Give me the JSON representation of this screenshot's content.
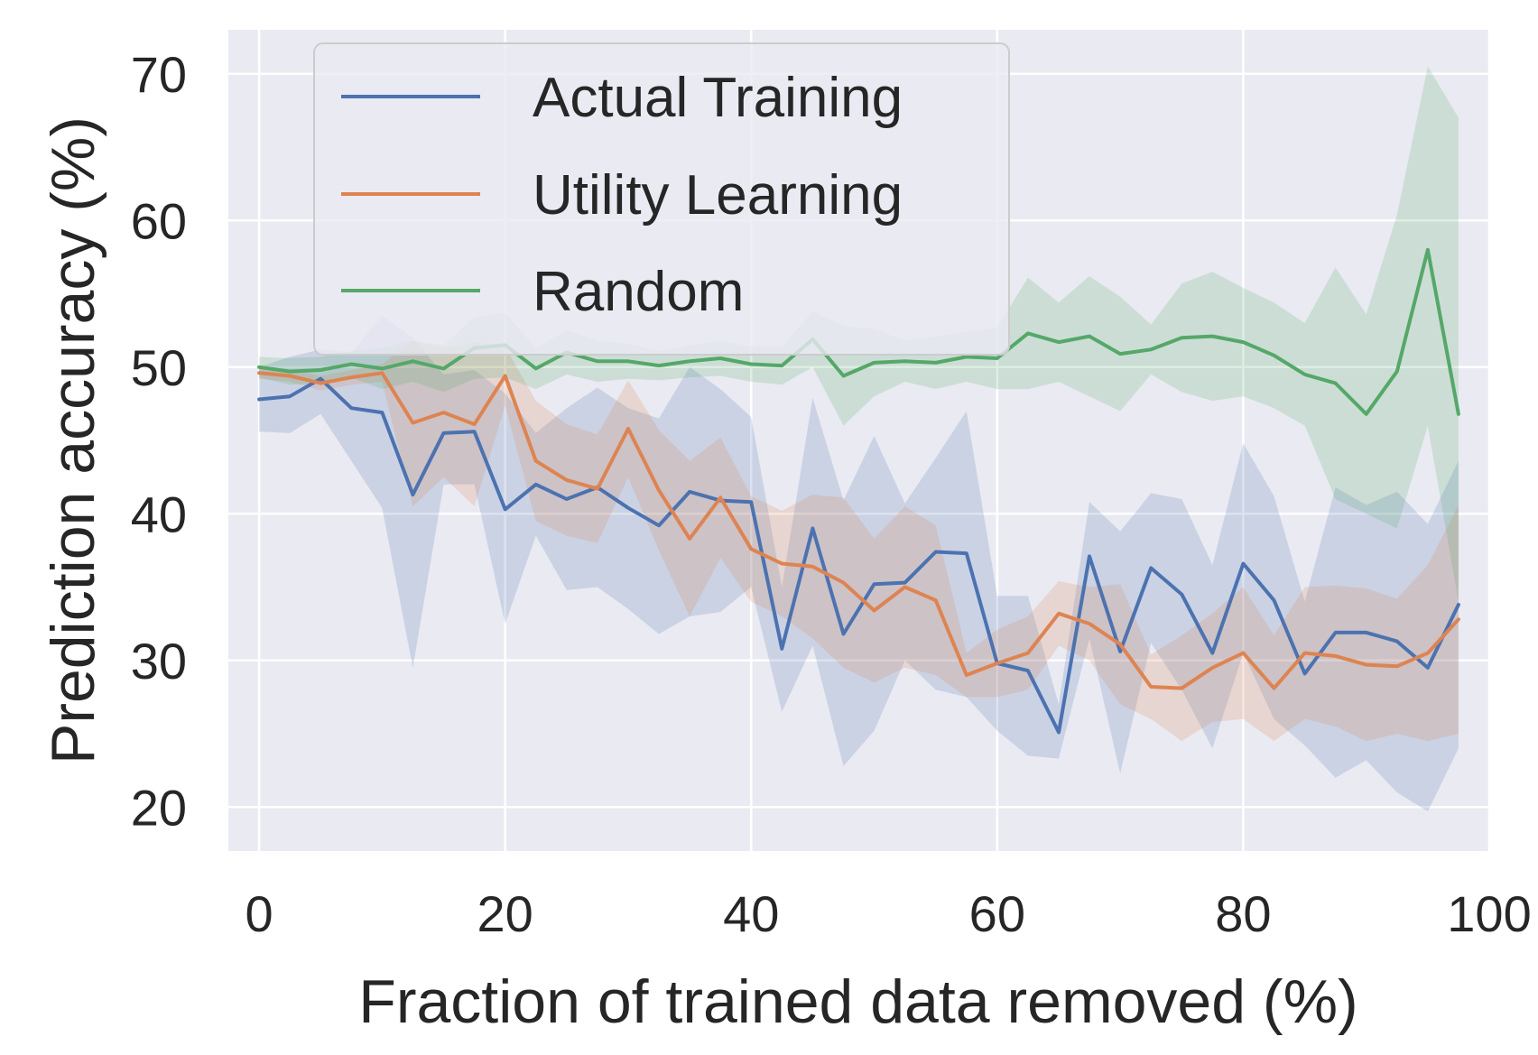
{
  "chart_data": {
    "type": "line",
    "title": "",
    "xlabel": "Fraction of trained data removed (%)",
    "ylabel": "Prediction accuracy (%)",
    "xlim": [
      -2.5,
      100
    ],
    "ylim": [
      17,
      73
    ],
    "xticks": [
      0,
      20,
      40,
      60,
      80,
      100
    ],
    "yticks": [
      20,
      30,
      40,
      50,
      60,
      70
    ],
    "grid": true,
    "legend_position": "top-left",
    "x": [
      0,
      2.5,
      5,
      7.5,
      10,
      12.5,
      15,
      17.5,
      20,
      22.5,
      25,
      27.5,
      30,
      32.5,
      35,
      37.5,
      40,
      42.5,
      45,
      47.5,
      50,
      52.5,
      55,
      57.5,
      60,
      62.5,
      65,
      67.5,
      70,
      72.5,
      75,
      77.5,
      80,
      82.5,
      85,
      87.5,
      90,
      92.5,
      95,
      97.5
    ],
    "series": [
      {
        "name": "Actual Training",
        "color": "#4c72b0",
        "values": [
          47.8,
          48.0,
          49.2,
          47.2,
          46.9,
          41.3,
          45.5,
          45.6,
          40.3,
          42.0,
          41.0,
          41.8,
          40.4,
          39.2,
          41.5,
          40.9,
          40.8,
          30.8,
          39.0,
          31.8,
          35.2,
          35.3,
          37.4,
          37.3,
          29.8,
          29.3,
          25.1,
          37.1,
          30.6,
          36.3,
          34.5,
          30.5,
          36.6,
          34.1,
          29.1,
          31.9,
          31.9,
          31.3,
          29.5,
          33.8
        ],
        "lower": [
          45.6,
          45.5,
          46.8,
          43.6,
          40.4,
          29.5,
          42.0,
          42.0,
          32.5,
          38.5,
          34.8,
          35.0,
          33.5,
          31.8,
          33.0,
          33.3,
          35.0,
          26.5,
          31.0,
          22.8,
          25.2,
          30.0,
          28.0,
          27.5,
          25.2,
          23.5,
          23.3,
          31.5,
          22.3,
          31.2,
          28.0,
          24.0,
          30.5,
          26.0,
          24.2,
          22.0,
          23.2,
          21.0,
          19.7,
          24.0
        ],
        "upper": [
          50.0,
          50.7,
          51.2,
          51.0,
          53.5,
          52.0,
          49.5,
          49.8,
          48.2,
          45.5,
          47.2,
          48.6,
          47.2,
          46.5,
          50.0,
          48.5,
          46.6,
          35.0,
          47.9,
          40.9,
          45.3,
          40.7,
          43.8,
          47.0,
          34.4,
          34.4,
          27.0,
          40.8,
          38.8,
          41.4,
          41.0,
          36.5,
          44.8,
          41.2,
          34.0,
          41.8,
          40.6,
          41.5,
          39.3,
          43.6
        ]
      },
      {
        "name": "Utility Learning",
        "color": "#dd8452",
        "values": [
          49.6,
          49.4,
          48.9,
          49.3,
          49.6,
          46.2,
          46.9,
          46.1,
          49.4,
          43.6,
          42.3,
          41.7,
          45.8,
          41.6,
          38.3,
          41.1,
          37.6,
          36.6,
          36.4,
          35.3,
          33.4,
          35.0,
          34.1,
          29.0,
          29.8,
          30.5,
          33.2,
          32.5,
          31.1,
          28.2,
          28.1,
          29.5,
          30.5,
          28.1,
          30.5,
          30.3,
          29.7,
          29.6,
          30.5,
          32.8
        ],
        "lower": [
          49.2,
          49.0,
          48.4,
          48.8,
          49.0,
          40.5,
          42.5,
          40.5,
          47.4,
          39.5,
          38.5,
          38.0,
          42.5,
          37.5,
          33.0,
          37.0,
          34.0,
          33.0,
          31.5,
          29.5,
          28.5,
          29.5,
          29.0,
          27.5,
          27.5,
          28.0,
          31.0,
          30.0,
          27.0,
          26.0,
          24.5,
          25.8,
          26.0,
          24.5,
          26.0,
          25.5,
          24.5,
          25.0,
          24.5,
          25.0
        ],
        "upper": [
          50.0,
          49.8,
          49.4,
          49.8,
          50.2,
          51.8,
          51.3,
          51.7,
          51.4,
          47.7,
          46.1,
          45.4,
          49.1,
          45.7,
          43.6,
          45.2,
          41.2,
          40.2,
          41.3,
          41.1,
          38.3,
          40.5,
          39.2,
          30.5,
          32.1,
          33.0,
          35.4,
          35.0,
          35.2,
          30.4,
          31.7,
          33.2,
          35.0,
          31.7,
          35.0,
          35.1,
          34.9,
          34.2,
          36.5,
          40.6
        ]
      },
      {
        "name": "Random",
        "color": "#55a868",
        "values": [
          50.0,
          49.7,
          49.8,
          50.2,
          49.9,
          50.4,
          49.9,
          51.3,
          51.5,
          49.9,
          51.0,
          50.4,
          50.4,
          50.1,
          50.4,
          50.6,
          50.2,
          50.1,
          51.9,
          49.4,
          50.3,
          50.4,
          50.3,
          50.7,
          50.6,
          52.3,
          51.7,
          52.1,
          50.9,
          51.2,
          52.0,
          52.1,
          51.7,
          50.8,
          49.5,
          48.9,
          46.8,
          49.7,
          58.0,
          46.8
        ],
        "lower": [
          49.3,
          48.8,
          48.9,
          49.3,
          48.5,
          49.0,
          48.3,
          49.2,
          49.3,
          48.5,
          49.5,
          49.0,
          49.2,
          49.1,
          49.3,
          49.4,
          49.0,
          48.8,
          50.0,
          46.0,
          48.0,
          49.0,
          48.5,
          49.0,
          48.5,
          48.5,
          49.0,
          48.0,
          47.0,
          49.5,
          48.3,
          47.7,
          48.0,
          47.2,
          46.0,
          41.0,
          40.0,
          39.0,
          46.0,
          34.0
        ],
        "upper": [
          50.7,
          50.6,
          50.7,
          51.1,
          51.3,
          51.8,
          51.5,
          53.4,
          53.7,
          51.3,
          52.5,
          51.8,
          51.6,
          51.1,
          51.5,
          51.8,
          51.4,
          51.4,
          53.8,
          52.8,
          52.6,
          51.8,
          52.1,
          52.4,
          52.7,
          56.1,
          54.4,
          56.2,
          54.8,
          52.9,
          55.7,
          56.5,
          55.4,
          54.4,
          53.0,
          56.8,
          53.6,
          60.4,
          70.5,
          67.0
        ]
      }
    ]
  }
}
